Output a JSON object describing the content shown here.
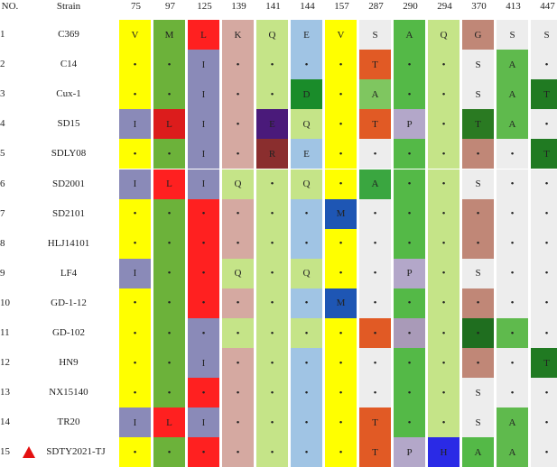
{
  "header": {
    "no": "NO.",
    "strain": "Strain"
  },
  "positions": [
    "75",
    "97",
    "125",
    "139",
    "141",
    "144",
    "157",
    "287",
    "290",
    "294",
    "370",
    "413",
    "447"
  ],
  "rows": [
    {
      "no": "1",
      "strain": "C369",
      "values": [
        "V",
        "M",
        "L",
        "K",
        "Q",
        "E",
        "V",
        "S",
        "A",
        "Q",
        "G",
        "S",
        "S"
      ],
      "colors": [
        "#ffff00",
        "#6cb23a",
        "#ff2020",
        "#d5a9a1",
        "#c5e488",
        "#a0c4e4",
        "#ffff00",
        "#ededed",
        "#54b947",
        "#c5e488",
        "#c08777",
        "#ededed",
        "#ededed"
      ]
    },
    {
      "no": "2",
      "strain": "C14",
      "values": [
        "•",
        "•",
        "I",
        "•",
        "•",
        "•",
        "•",
        "T",
        "•",
        "•",
        "S",
        "A",
        "•"
      ],
      "colors": [
        "#ffff00",
        "#6cb23a",
        "#8a8ab8",
        "#d5a9a1",
        "#c5e488",
        "#a0c4e4",
        "#ffff00",
        "#e15a25",
        "#54b947",
        "#c5e488",
        "#ededed",
        "#5fba4d",
        "#ededed"
      ]
    },
    {
      "no": "3",
      "strain": "Cux-1",
      "values": [
        "•",
        "•",
        "I",
        "•",
        "•",
        "D",
        "•",
        "A",
        "•",
        "•",
        "S",
        "A",
        "T"
      ],
      "colors": [
        "#ffff00",
        "#6cb23a",
        "#8a8ab8",
        "#d5a9a1",
        "#c5e488",
        "#1a8c2a",
        "#ffff00",
        "#7fc660",
        "#54b947",
        "#c5e488",
        "#ededed",
        "#5fba4d",
        "#207a22"
      ]
    },
    {
      "no": "4",
      "strain": "SD15",
      "values": [
        "I",
        "L",
        "I",
        "•",
        "E",
        "Q",
        "•",
        "T",
        "P",
        "•",
        "T",
        "A",
        "•"
      ],
      "colors": [
        "#8a8ab8",
        "#dc1c1c",
        "#8a8ab8",
        "#d5a9a1",
        "#4a1a7a",
        "#c5e488",
        "#ffff00",
        "#e15a25",
        "#b3a7c9",
        "#c5e488",
        "#2a7a22",
        "#5fba4d",
        "#ededed"
      ]
    },
    {
      "no": "5",
      "strain": "SDLY08",
      "values": [
        "•",
        "•",
        "I",
        "•",
        "R",
        "E",
        "•",
        "•",
        "•",
        "•",
        "•",
        "•",
        "T"
      ],
      "colors": [
        "#ffff00",
        "#6cb23a",
        "#8a8ab8",
        "#d5a9a1",
        "#8a2e2e",
        "#a0c4e4",
        "#ffff00",
        "#ededed",
        "#54b947",
        "#c5e488",
        "#c08777",
        "#ededed",
        "#207a22"
      ]
    },
    {
      "no": "6",
      "strain": "SD2001",
      "values": [
        "I",
        "L",
        "I",
        "Q",
        "•",
        "Q",
        "•",
        "A",
        "•",
        "•",
        "S",
        "•",
        "•"
      ],
      "colors": [
        "#8a8ab8",
        "#ff2020",
        "#8a8ab8",
        "#c5e488",
        "#c5e488",
        "#c5e488",
        "#ffff00",
        "#3aa640",
        "#54b947",
        "#c5e488",
        "#ededed",
        "#ededed",
        "#ededed"
      ]
    },
    {
      "no": "7",
      "strain": "SD2101",
      "values": [
        "•",
        "•",
        "•",
        "•",
        "•",
        "•",
        "M",
        "•",
        "•",
        "•",
        "•",
        "•",
        "•"
      ],
      "colors": [
        "#ffff00",
        "#6cb23a",
        "#ff2020",
        "#d5a9a1",
        "#c5e488",
        "#a0c4e4",
        "#1e56b4",
        "#ededed",
        "#54b947",
        "#c5e488",
        "#c08777",
        "#ededed",
        "#ededed"
      ]
    },
    {
      "no": "8",
      "strain": "HLJ14101",
      "values": [
        "•",
        "•",
        "•",
        "•",
        "•",
        "•",
        "•",
        "•",
        "•",
        "•",
        "•",
        "•",
        "•"
      ],
      "colors": [
        "#ffff00",
        "#6cb23a",
        "#ff2020",
        "#d5a9a1",
        "#c5e488",
        "#a0c4e4",
        "#ffff00",
        "#ededed",
        "#54b947",
        "#c5e488",
        "#c08777",
        "#ededed",
        "#ededed"
      ]
    },
    {
      "no": "9",
      "strain": "LF4",
      "values": [
        "I",
        "•",
        "•",
        "Q",
        "•",
        "Q",
        "•",
        "•",
        "P",
        "•",
        "S",
        "•",
        "•"
      ],
      "colors": [
        "#8a8ab8",
        "#6cb23a",
        "#ff2020",
        "#c5e488",
        "#c5e488",
        "#c5e488",
        "#ffff00",
        "#ededed",
        "#b3a7c9",
        "#c5e488",
        "#ededed",
        "#ededed",
        "#ededed"
      ]
    },
    {
      "no": "10",
      "strain": "GD-1-12",
      "values": [
        "•",
        "•",
        "•",
        "•",
        "•",
        "•",
        "M",
        "•",
        "•",
        "•",
        "•",
        "•",
        "•"
      ],
      "colors": [
        "#ffff00",
        "#6cb23a",
        "#ff2020",
        "#d5a9a1",
        "#c5e488",
        "#a0c4e4",
        "#1e56b4",
        "#ededed",
        "#54b947",
        "#c5e488",
        "#c08777",
        "#ededed",
        "#ededed"
      ]
    },
    {
      "no": "11",
      "strain": "GD-102",
      "values": [
        "•",
        "•",
        "•",
        "•",
        "•",
        "•",
        "•",
        "•",
        "•",
        "•",
        "•",
        "•",
        "•"
      ],
      "colors": [
        "#ffff00",
        "#6cb23a",
        "#8a8ab8",
        "#c5e488",
        "#c5e488",
        "#c5e488",
        "#ffff00",
        "#e15a25",
        "#a99ab8",
        "#c5e488",
        "#1f6e1f",
        "#5fba4d",
        "#ededed"
      ]
    },
    {
      "no": "12",
      "strain": "HN9",
      "values": [
        "•",
        "•",
        "I",
        "•",
        "•",
        "•",
        "•",
        "•",
        "•",
        "•",
        "•",
        "•",
        "T"
      ],
      "colors": [
        "#ffff00",
        "#6cb23a",
        "#8a8ab8",
        "#d5a9a1",
        "#c5e488",
        "#a0c4e4",
        "#ffff00",
        "#ededed",
        "#54b947",
        "#c5e488",
        "#c08777",
        "#ededed",
        "#207a22"
      ]
    },
    {
      "no": "13",
      "strain": "NX15140",
      "values": [
        "•",
        "•",
        "•",
        "•",
        "•",
        "•",
        "•",
        "•",
        "•",
        "•",
        "S",
        "•",
        "•"
      ],
      "colors": [
        "#ffff00",
        "#6cb23a",
        "#ff2020",
        "#d5a9a1",
        "#c5e488",
        "#a0c4e4",
        "#ffff00",
        "#ededed",
        "#54b947",
        "#c5e488",
        "#ededed",
        "#ededed",
        "#ededed"
      ]
    },
    {
      "no": "14",
      "strain": "TR20",
      "values": [
        "I",
        "L",
        "I",
        "•",
        "•",
        "•",
        "•",
        "T",
        "•",
        "•",
        "S",
        "A",
        "•"
      ],
      "colors": [
        "#8a8ab8",
        "#ff2020",
        "#8a8ab8",
        "#d5a9a1",
        "#c5e488",
        "#a0c4e4",
        "#ffff00",
        "#e15a25",
        "#54b947",
        "#c5e488",
        "#ededed",
        "#5fba4d",
        "#ededed"
      ]
    },
    {
      "no": "15",
      "strain": "SDTY2021-TJ",
      "marker": true,
      "values": [
        "•",
        "•",
        "•",
        "•",
        "•",
        "•",
        "•",
        "T",
        "P",
        "H",
        "A",
        "A",
        "•"
      ],
      "colors": [
        "#ffff00",
        "#6cb23a",
        "#ff2020",
        "#d5a9a1",
        "#c5e488",
        "#a0c4e4",
        "#ffff00",
        "#e15a25",
        "#b3a7c9",
        "#2a2ae6",
        "#54b947",
        "#5fba4d",
        "#ededed"
      ]
    }
  ]
}
